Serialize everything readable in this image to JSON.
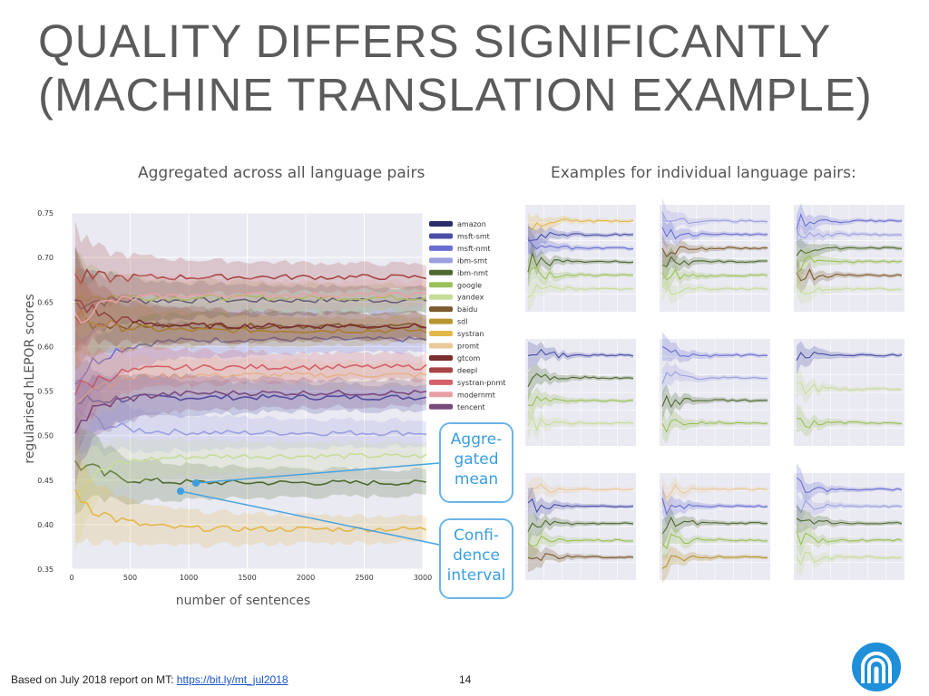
{
  "slide": {
    "title_line1": "QUALITY DIFFERS SIGNIFICANTLY",
    "title_line2": "(MACHINE TRANSLATION EXAMPLE)",
    "left_subtitle": "Aggregated across all language pairs",
    "right_subtitle": "Examples for individual language pairs:",
    "footer_text": "Based on July 2018 report on MT: ",
    "footer_link": "https://bit.ly/mt_jul2018",
    "page_number": "14",
    "logo_icon": "arch-logo-icon"
  },
  "callouts": {
    "mean_lines": [
      "Aggre-",
      "gated",
      "mean"
    ],
    "ci_lines": [
      "Confi-",
      "dence",
      "interval"
    ],
    "color": "#3b9ee0"
  },
  "chart_data": {
    "type": "line",
    "xlabel": "number of sentences",
    "ylabel": "regularised hLEPOR scores",
    "xlim": [
      0,
      3000
    ],
    "ylim": [
      0.35,
      0.75
    ],
    "xticks": [
      0,
      500,
      1000,
      1500,
      2000,
      2500,
      3000
    ],
    "yticks": [
      0.35,
      0.4,
      0.45,
      0.5,
      0.55,
      0.6,
      0.65,
      0.7,
      0.75
    ],
    "legend_position": "right",
    "grid": true,
    "series": [
      {
        "name": "amazon",
        "color": "#2b2d6b",
        "value": 0.652
      },
      {
        "name": "msft-smt",
        "color": "#4a4ea6",
        "value": 0.543
      },
      {
        "name": "msft-nmt",
        "color": "#6a6fd2",
        "value": 0.608
      },
      {
        "name": "ibm-smt",
        "color": "#9b9fe0",
        "value": 0.503
      },
      {
        "name": "ibm-nmt",
        "color": "#4f6a30",
        "value": 0.447
      },
      {
        "name": "google",
        "color": "#9bc05a",
        "value": 0.655
      },
      {
        "name": "yandex",
        "color": "#c8dc9a",
        "value": 0.477
      },
      {
        "name": "baidu",
        "color": "#7a5a2e",
        "value": 0.623
      },
      {
        "name": "sdl",
        "color": "#b79530",
        "value": 0.618
      },
      {
        "name": "systran",
        "color": "#e3b84a",
        "value": 0.395
      },
      {
        "name": "promt",
        "color": "#e9c99a",
        "value": 0.568
      },
      {
        "name": "gtcom",
        "color": "#7a2e2e",
        "value": 0.623
      },
      {
        "name": "deepl",
        "color": "#a84545",
        "value": 0.678
      },
      {
        "name": "systran-pnmt",
        "color": "#d4626a",
        "value": 0.577
      },
      {
        "name": "modernmt",
        "color": "#e8a0a5",
        "value": 0.658
      },
      {
        "name": "tencent",
        "color": "#7a4a7e",
        "value": 0.548
      }
    ]
  }
}
